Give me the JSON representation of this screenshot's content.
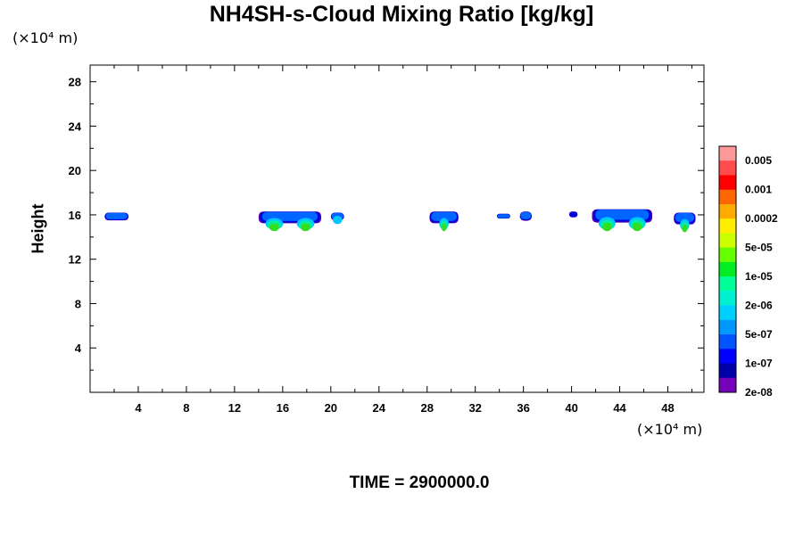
{
  "chart_data": {
    "type": "heatmap",
    "title": "NH4SH-s-Cloud Mixing Ratio [kg/kg]",
    "xlabel": "",
    "ylabel": "Height",
    "x_unit": "(×10⁴ m)",
    "y_unit": "(×10⁴ m)",
    "xlim": [
      0,
      51
    ],
    "ylim": [
      0,
      29.5
    ],
    "xticks": [
      4,
      8,
      12,
      16,
      20,
      24,
      28,
      32,
      36,
      40,
      44,
      48
    ],
    "yticks": [
      4,
      8,
      12,
      16,
      20,
      24,
      28
    ],
    "colorbar": {
      "labels": [
        "0.005",
        "0.001",
        "0.0002",
        "5e-05",
        "1e-05",
        "2e-06",
        "5e-07",
        "1e-07",
        "2e-08"
      ],
      "colors": [
        "#ff9999",
        "#ff4b4b",
        "#ff0000",
        "#ff6600",
        "#ffaa00",
        "#ffee00",
        "#ccff00",
        "#66ff00",
        "#00ee22",
        "#00ff99",
        "#00f0d0",
        "#00d0ff",
        "#0099ff",
        "#0055ff",
        "#0000ff",
        "#0000aa",
        "#7700bb"
      ]
    },
    "cloud_features": [
      {
        "x": [
          1.2,
          3.2
        ],
        "y": [
          15.0,
          16.2
        ],
        "max_level": "1e-07"
      },
      {
        "x": [
          14.0,
          19.2
        ],
        "y": [
          14.3,
          16.3
        ],
        "max_level": "1e-05"
      },
      {
        "x": [
          20.0,
          21.1
        ],
        "y": [
          15.0,
          16.2
        ],
        "max_level": "5e-07"
      },
      {
        "x": [
          28.2,
          30.6
        ],
        "y": [
          14.3,
          16.3
        ],
        "max_level": "1e-05"
      },
      {
        "x": [
          33.8,
          34.9
        ],
        "y": [
          15.5,
          16.1
        ],
        "max_level": "1e-07"
      },
      {
        "x": [
          35.7,
          36.7
        ],
        "y": [
          14.8,
          16.3
        ],
        "max_level": "1e-07"
      },
      {
        "x": [
          39.8,
          40.5
        ],
        "y": [
          15.5,
          16.3
        ],
        "max_level": "2e-08"
      },
      {
        "x": [
          41.7,
          46.7
        ],
        "y": [
          14.2,
          16.5
        ],
        "max_level": "1e-05"
      },
      {
        "x": [
          48.5,
          50.3
        ],
        "y": [
          14.2,
          16.2
        ],
        "max_level": "1e-05"
      }
    ]
  },
  "footer": {
    "time_label": "TIME = 2900000.0"
  }
}
